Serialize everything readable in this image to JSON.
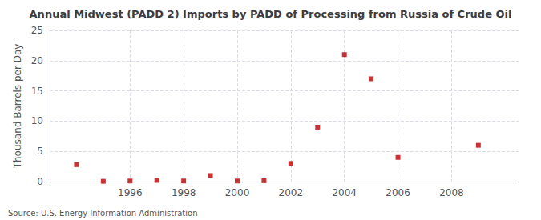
{
  "chart_data": {
    "type": "scatter",
    "title": "Annual Midwest (PADD 2) Imports by PADD of Processing from Russia of Crude Oil",
    "y_label": "Thousand Barrels per Day",
    "annotations": [
      "Source: U.S. Energy Information Administration"
    ],
    "x": [
      1994,
      1995,
      1996,
      1997,
      1998,
      1999,
      2000,
      2001,
      2002,
      2003,
      2004,
      2005,
      2006,
      2009
    ],
    "values": [
      2.8,
      0.05,
      0.1,
      0.2,
      0.1,
      1.0,
      0.1,
      0.15,
      3.0,
      9.0,
      21.0,
      17.0,
      4.0,
      6.0
    ],
    "color": "#bb0000",
    "marker": "square",
    "xlim": [
      1993.0,
      2010.5
    ],
    "xticks": [
      1996,
      1998,
      2000,
      2002,
      2004,
      2006,
      2008
    ],
    "ylim": [
      0,
      25
    ],
    "yticks": [
      0,
      5,
      10,
      15,
      20,
      25
    ],
    "grid": true
  }
}
